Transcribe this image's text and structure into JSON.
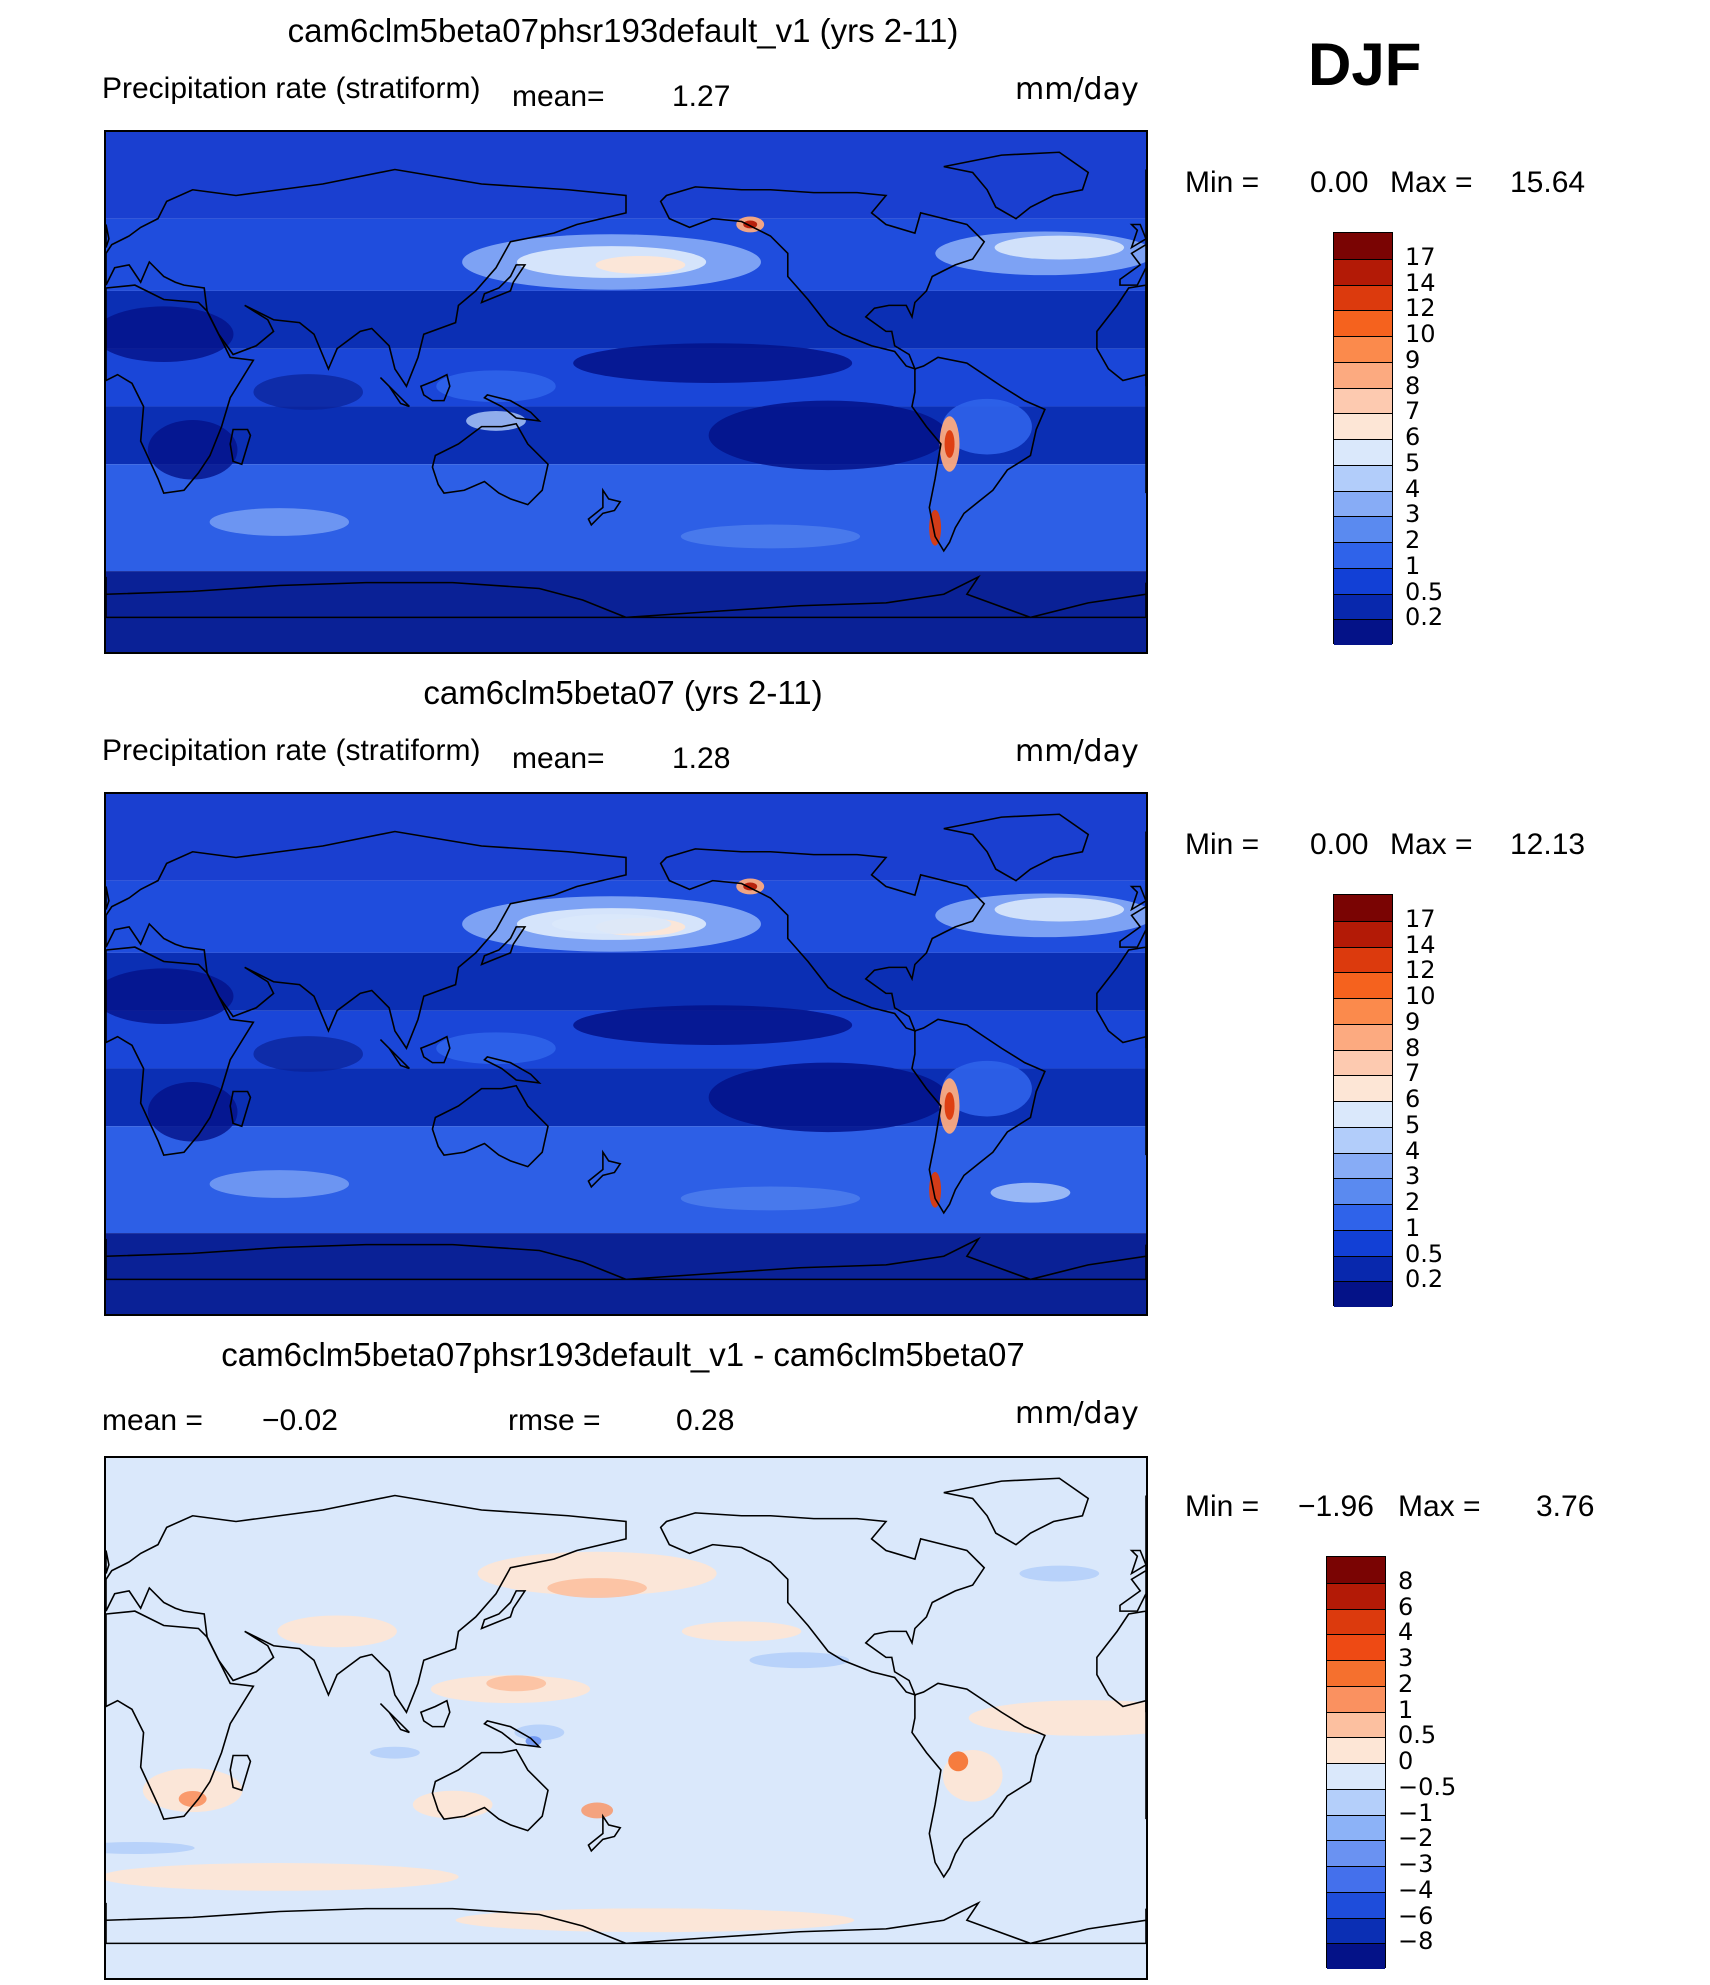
{
  "season": "DJF",
  "units": "mm/day",
  "panels": [
    {
      "title": "cam6clm5beta07phsr193default_v1 (yrs 2-11)",
      "variable": "Precipitation rate (stratiform)",
      "mean_label": "mean=",
      "mean_value": "1.27",
      "min_label": "Min =",
      "min_value": "0.00",
      "max_label": "Max =",
      "max_value": "15.64"
    },
    {
      "title": "cam6clm5beta07 (yrs 2-11)",
      "variable": "Precipitation rate (stratiform)",
      "mean_label": "mean=",
      "mean_value": "1.28",
      "min_label": "Min =",
      "min_value": "0.00",
      "max_label": "Max =",
      "max_value": "12.13"
    },
    {
      "title": "cam6clm5beta07phsr193default_v1 - cam6clm5beta07",
      "mean_label": "mean =",
      "mean_value": "−0.02",
      "rmse_label": "rmse =",
      "rmse_value": "0.28",
      "min_label": "Min =",
      "min_value": "−1.96",
      "max_label": "Max =",
      "max_value": "3.76"
    }
  ],
  "colorbars": {
    "precip": {
      "levels": [
        "17",
        "14",
        "12",
        "10",
        "9",
        "8",
        "7",
        "6",
        "5",
        "4",
        "3",
        "2",
        "1",
        "0.5",
        "0.2"
      ],
      "colors": [
        "#7a0403",
        "#b31a06",
        "#dc3a0d",
        "#f5621e",
        "#fb8a4c",
        "#fcaa80",
        "#fdcab0",
        "#fde6d6",
        "#dae8fb",
        "#b2cdfa",
        "#87acf6",
        "#5a8af0",
        "#2f63ea",
        "#1240d6",
        "#0828ad",
        "#041288"
      ]
    },
    "diff": {
      "levels": [
        "8",
        "6",
        "4",
        "3",
        "2",
        "1",
        "0.5",
        "0",
        "−0.5",
        "−1",
        "−2",
        "−3",
        "−4",
        "−6",
        "−8"
      ],
      "colors": [
        "#7a0403",
        "#b31a06",
        "#dc3a0d",
        "#ee4a14",
        "#f5702e",
        "#fa9160",
        "#fcc0a0",
        "#fde6d6",
        "#dae8fb",
        "#b4cffa",
        "#8cb2f7",
        "#6a92f2",
        "#4470ec",
        "#1e4ddb",
        "#0b2fb4",
        "#041288"
      ]
    }
  }
}
